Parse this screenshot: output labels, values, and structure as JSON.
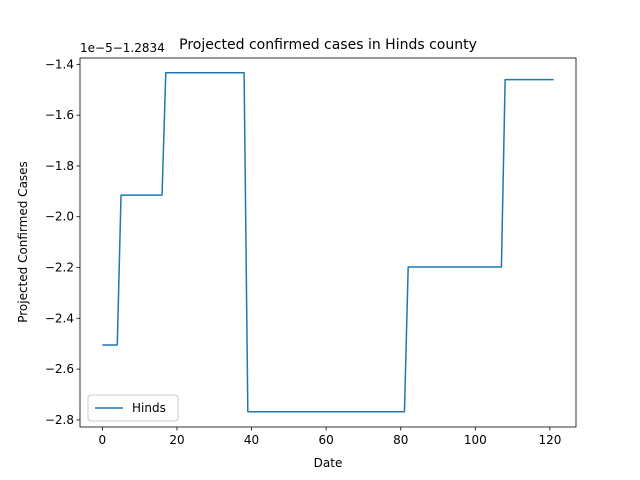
{
  "chart_data": {
    "type": "line",
    "title": "Projected confirmed cases in Hinds county",
    "xlabel": "Date",
    "ylabel": "Projected Confirmed Cases",
    "offset_label": "1e−5−1.2834",
    "legend": {
      "entries": [
        "Hinds"
      ],
      "placement": "lower-left"
    },
    "xlim": [
      -6,
      127
    ],
    "ylim": [
      -2.828,
      -1.375
    ],
    "xticks": [
      0,
      20,
      40,
      60,
      80,
      100,
      120
    ],
    "yticks": [
      -2.8,
      -2.6,
      -2.4,
      -2.2,
      -2.0,
      -1.8,
      -1.6,
      -1.4
    ],
    "grid": false,
    "series": [
      {
        "name": "Hinds",
        "color": "#1f77b4",
        "x": [
          0,
          4,
          5,
          16,
          17,
          38,
          39,
          81,
          82,
          107,
          108,
          121
        ],
        "y": [
          -2.505,
          -2.505,
          -1.915,
          -1.915,
          -1.433,
          -1.433,
          -2.768,
          -2.768,
          -2.198,
          -2.198,
          -1.46,
          -1.46
        ]
      }
    ]
  }
}
